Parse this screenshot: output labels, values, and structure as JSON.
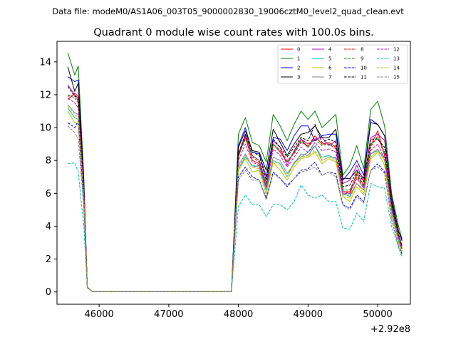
{
  "header": {
    "data_file": "Data file: modeM0/AS1A06_003T05_9000002830_19006cztM0_level2_quad_clean.evt"
  },
  "chart_data": {
    "type": "line",
    "title": "Quadrant 0 module wise count rates with 100.0s bins.",
    "xlabel": "",
    "ylabel": "",
    "x_offset_label": "+2.92e8",
    "xlim": [
      45395,
      50470
    ],
    "ylim": [
      -0.75,
      15.25
    ],
    "xticks": [
      46000,
      47000,
      48000,
      49000,
      50000
    ],
    "yticks": [
      0,
      2,
      4,
      6,
      8,
      10,
      12,
      14
    ],
    "grid": false,
    "legend_position": "top-right",
    "x": [
      45550,
      45650,
      45700,
      45780,
      45830,
      45900,
      47900,
      48000,
      48100,
      48200,
      48300,
      48400,
      48500,
      48600,
      48700,
      48800,
      48900,
      49000,
      49100,
      49200,
      49300,
      49400,
      49500,
      49600,
      49700,
      49800,
      49900,
      50000,
      50100,
      50200,
      50300,
      50350
    ],
    "series": [
      {
        "name": "0",
        "color": "#ff0000",
        "dash": "solid",
        "values": [
          11.7,
          12.1,
          11.9,
          6.2,
          0.3,
          0.02,
          0.02,
          8.4,
          9.4,
          8.0,
          7.8,
          6.3,
          9.0,
          8.5,
          7.9,
          8.5,
          9.3,
          8.8,
          9.5,
          9.0,
          9.1,
          8.8,
          6.1,
          6.1,
          7.2,
          6.5,
          8.9,
          9.8,
          8.3,
          5.3,
          3.5,
          2.6
        ]
      },
      {
        "name": "1",
        "color": "#008000",
        "dash": "solid",
        "values": [
          14.55,
          13.2,
          13.75,
          7.0,
          0.3,
          0.02,
          0.02,
          9.6,
          10.6,
          9.1,
          8.9,
          7.9,
          10.8,
          10.1,
          9.2,
          10.2,
          11.0,
          10.5,
          11.0,
          10.0,
          10.4,
          10.8,
          7.1,
          7.7,
          8.9,
          7.5,
          11.1,
          11.6,
          10.1,
          6.0,
          4.0,
          3.2
        ]
      },
      {
        "name": "2",
        "color": "#0000ff",
        "dash": "solid",
        "values": [
          13.1,
          12.8,
          12.9,
          6.6,
          0.3,
          0.02,
          0.02,
          8.9,
          10.0,
          8.5,
          8.4,
          7.0,
          9.4,
          9.3,
          8.6,
          9.5,
          10.1,
          10.1,
          9.2,
          9.5,
          9.6,
          9.6,
          6.8,
          7.3,
          8.0,
          7.1,
          10.5,
          10.2,
          9.5,
          5.8,
          3.7,
          3.1
        ]
      },
      {
        "name": "3",
        "color": "#000000",
        "dash": "solid",
        "values": [
          13.7,
          12.2,
          12.7,
          6.8,
          0.3,
          0.02,
          0.02,
          8.8,
          9.8,
          8.6,
          8.5,
          7.4,
          9.9,
          9.1,
          8.3,
          9.0,
          9.6,
          9.7,
          10.1,
          9.4,
          9.4,
          9.9,
          6.9,
          6.9,
          7.4,
          6.9,
          10.3,
          10.2,
          9.5,
          5.6,
          3.7,
          3.2
        ]
      },
      {
        "name": "4",
        "color": "#bf00bf",
        "dash": "solid",
        "values": [
          12.6,
          12.0,
          11.8,
          6.4,
          0.3,
          0.02,
          0.02,
          8.2,
          9.5,
          8.3,
          8.0,
          6.6,
          9.2,
          8.8,
          7.7,
          8.6,
          9.3,
          9.0,
          9.3,
          9.4,
          8.9,
          9.2,
          6.6,
          6.8,
          7.7,
          6.7,
          9.4,
          9.6,
          9.2,
          5.5,
          3.4,
          2.8
        ]
      },
      {
        "name": "5",
        "color": "#00bfbf",
        "dash": "solid",
        "values": [
          11.2,
          10.6,
          10.5,
          5.8,
          0.3,
          0.02,
          0.02,
          7.5,
          8.2,
          7.7,
          7.6,
          6.2,
          8.0,
          7.8,
          7.0,
          7.9,
          8.2,
          8.5,
          8.9,
          8.2,
          8.3,
          8.1,
          6.0,
          5.8,
          6.6,
          6.2,
          8.4,
          8.6,
          8.2,
          5.0,
          3.1,
          2.6
        ]
      },
      {
        "name": "6",
        "color": "#bfbf00",
        "dash": "solid",
        "values": [
          11.0,
          10.3,
          10.2,
          5.6,
          0.3,
          0.02,
          0.02,
          7.4,
          8.1,
          7.3,
          7.4,
          5.9,
          7.9,
          7.4,
          6.8,
          7.6,
          8.1,
          8.2,
          8.5,
          7.8,
          8.1,
          7.9,
          5.8,
          5.5,
          6.4,
          5.9,
          8.1,
          8.5,
          7.7,
          4.7,
          3.0,
          2.4
        ]
      },
      {
        "name": "7",
        "color": "#808080",
        "dash": "solid",
        "values": [
          11.4,
          10.9,
          10.8,
          5.9,
          0.3,
          0.02,
          0.02,
          7.7,
          8.4,
          7.6,
          7.7,
          6.3,
          8.2,
          8.0,
          7.2,
          7.8,
          8.4,
          8.3,
          8.9,
          8.0,
          8.2,
          8.2,
          5.9,
          5.9,
          6.6,
          6.2,
          8.4,
          8.7,
          8.0,
          4.9,
          3.1,
          2.6
        ]
      },
      {
        "name": "8",
        "color": "#ff0000",
        "dash": "dashed",
        "values": [
          11.9,
          12.0,
          11.6,
          6.3,
          0.3,
          0.02,
          0.02,
          8.3,
          9.6,
          8.2,
          7.9,
          6.4,
          9.0,
          8.6,
          8.0,
          8.4,
          9.1,
          8.9,
          9.5,
          9.0,
          9.0,
          8.7,
          6.1,
          6.0,
          7.0,
          6.4,
          8.8,
          9.5,
          8.3,
          5.2,
          3.4,
          2.6
        ]
      },
      {
        "name": "9",
        "color": "#008000",
        "dash": "dashed",
        "values": [
          12.0,
          11.8,
          11.5,
          6.3,
          0.3,
          0.02,
          0.02,
          8.3,
          9.3,
          8.3,
          8.0,
          6.6,
          9.0,
          8.5,
          7.9,
          8.5,
          9.2,
          8.8,
          9.3,
          8.9,
          9.0,
          8.9,
          6.2,
          6.2,
          7.1,
          6.4,
          9.0,
          9.4,
          8.5,
          5.3,
          3.4,
          2.7
        ]
      },
      {
        "name": "10",
        "color": "#0000ff",
        "dash": "dashed",
        "values": [
          10.3,
          10.0,
          10.4,
          5.4,
          0.3,
          0.02,
          0.02,
          7.0,
          7.6,
          7.0,
          6.8,
          5.7,
          7.3,
          6.9,
          6.4,
          6.9,
          7.4,
          7.5,
          7.9,
          7.1,
          7.3,
          7.2,
          5.3,
          5.1,
          5.9,
          5.5,
          7.4,
          7.8,
          7.3,
          4.4,
          2.8,
          2.3
        ]
      },
      {
        "name": "11",
        "color": "#000000",
        "dash": "dashed",
        "values": [
          12.5,
          11.9,
          11.8,
          6.4,
          0.3,
          0.02,
          0.02,
          8.4,
          9.6,
          8.5,
          8.3,
          6.8,
          9.3,
          8.8,
          8.2,
          8.8,
          9.4,
          9.2,
          10.2,
          9.1,
          9.3,
          9.1,
          6.4,
          6.5,
          7.3,
          6.7,
          9.3,
          9.3,
          8.8,
          5.4,
          3.5,
          2.8
        ]
      },
      {
        "name": "12",
        "color": "#bf00bf",
        "dash": "dashed",
        "values": [
          11.8,
          11.5,
          11.2,
          6.1,
          0.3,
          0.02,
          0.02,
          8.0,
          9.0,
          7.9,
          7.7,
          6.4,
          8.7,
          8.3,
          7.6,
          8.2,
          8.8,
          8.5,
          9.1,
          8.6,
          8.7,
          8.5,
          6.0,
          6.0,
          6.9,
          6.3,
          8.6,
          9.0,
          8.1,
          5.1,
          3.3,
          2.6
        ]
      },
      {
        "name": "13",
        "color": "#00bfbf",
        "dash": "dashed",
        "values": [
          7.8,
          7.85,
          7.3,
          4.0,
          0.25,
          0.02,
          0.02,
          5.2,
          5.9,
          5.3,
          5.3,
          4.6,
          5.3,
          5.3,
          5.0,
          5.5,
          6.5,
          5.9,
          5.7,
          5.9,
          5.5,
          5.5,
          3.9,
          3.8,
          4.8,
          4.3,
          6.6,
          6.4,
          6.3,
          4.0,
          2.7,
          2.1
        ]
      },
      {
        "name": "14",
        "color": "#bfbf00",
        "dash": "dashed",
        "values": [
          11.3,
          10.8,
          10.6,
          5.8,
          0.3,
          0.02,
          0.02,
          7.6,
          8.3,
          7.6,
          7.5,
          6.0,
          8.0,
          7.7,
          7.0,
          7.8,
          8.2,
          8.3,
          8.6,
          8.0,
          8.2,
          8.0,
          5.8,
          5.7,
          6.6,
          6.0,
          8.2,
          8.6,
          8.0,
          4.8,
          3.0,
          2.5
        ]
      },
      {
        "name": "15",
        "color": "#808080",
        "dash": "dashed",
        "values": [
          10.1,
          9.7,
          9.3,
          5.1,
          0.3,
          0.02,
          0.02,
          6.8,
          7.4,
          6.8,
          6.8,
          5.6,
          7.2,
          6.9,
          6.5,
          6.9,
          7.3,
          7.4,
          7.6,
          7.1,
          7.3,
          7.0,
          5.3,
          5.0,
          5.8,
          5.4,
          7.4,
          7.6,
          7.2,
          4.4,
          2.8,
          2.2
        ]
      }
    ]
  }
}
